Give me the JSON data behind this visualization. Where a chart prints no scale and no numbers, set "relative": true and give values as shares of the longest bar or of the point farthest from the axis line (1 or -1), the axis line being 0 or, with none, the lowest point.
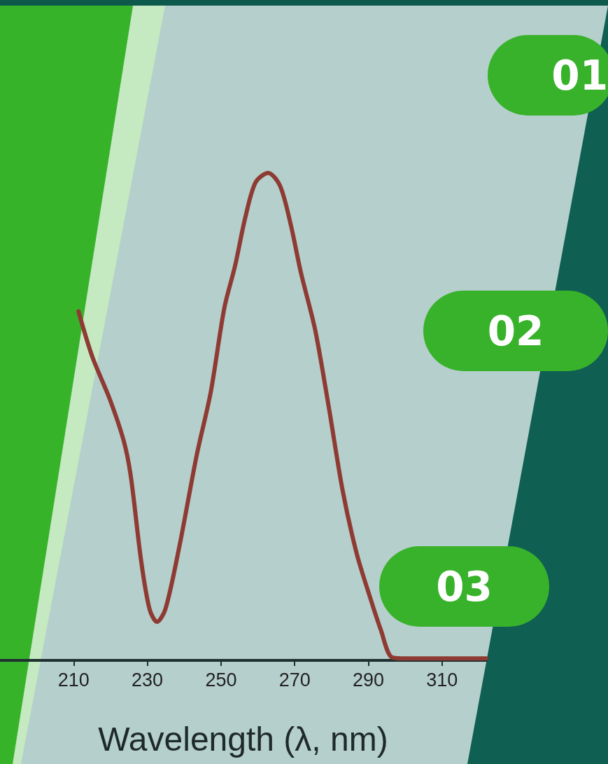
{
  "chart_data": {
    "type": "line",
    "relative": true,
    "xlabel": "Wavelength (λ, nm)",
    "xlim": [
      190,
      322
    ],
    "xticks": [
      210,
      230,
      250,
      270,
      290,
      310
    ],
    "grid": false,
    "marker": "none",
    "line_style": "solid",
    "annotations": [
      "01",
      "02",
      "03"
    ],
    "series": [
      {
        "color": "#8e3b33",
        "x": [
          211.3,
          215.1,
          219.8,
          223.6,
          225.5,
          228.3,
          230.6,
          232.6,
          234.9,
          238.7,
          243.4,
          247.2,
          250.9,
          253.8,
          256.6,
          259.4,
          262.8,
          266.0,
          268.9,
          271.7,
          275.5,
          279.2,
          283.0,
          286.8,
          290.6,
          293.4,
          296.2,
          299.1,
          322
        ],
        "values": [
          0.716,
          0.622,
          0.536,
          0.45,
          0.378,
          0.205,
          0.105,
          0.079,
          0.105,
          0.234,
          0.421,
          0.55,
          0.723,
          0.809,
          0.909,
          0.981,
          1,
          0.974,
          0.895,
          0.795,
          0.68,
          0.522,
          0.349,
          0.22,
          0.126,
          0.062,
          0.007,
          0.004,
          0.004
        ]
      }
    ]
  }
}
